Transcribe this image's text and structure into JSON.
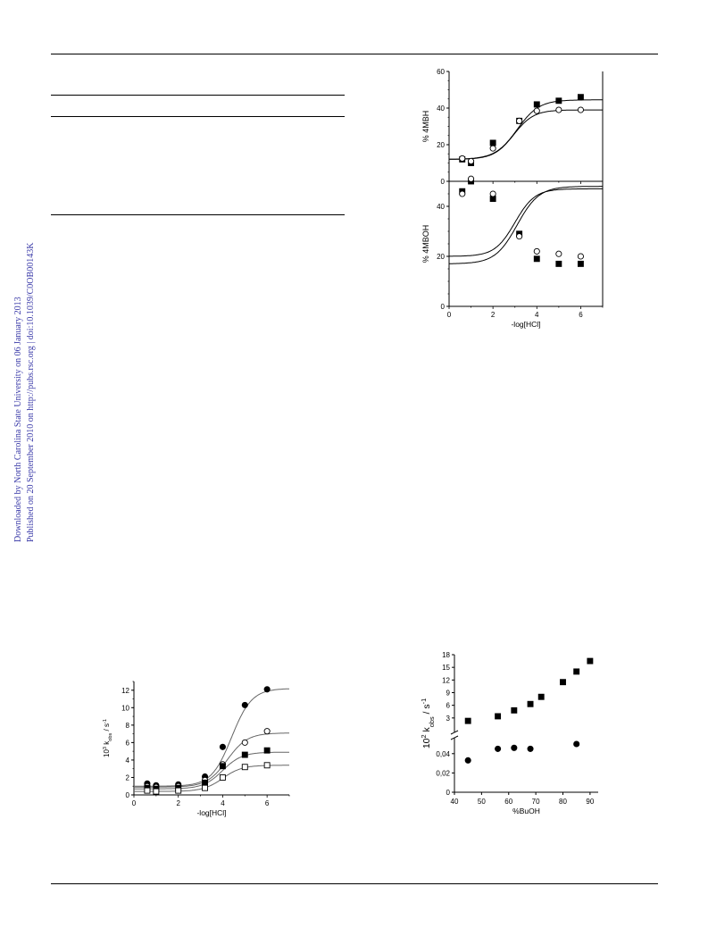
{
  "side_note": {
    "line1": "Downloaded by North Carolina State University on 06 January 2013",
    "line2": "Published on 20 September 2010 on http://pubs.rsc.org | doi:10.1039/C0OB00143K"
  },
  "chart_data": [
    {
      "id": "fig-4mbh",
      "type": "scatter",
      "xlabel": "",
      "ylabel": "% 4MBH",
      "xlim": [
        0,
        7
      ],
      "ylim": [
        0,
        60
      ],
      "yticks": [
        0,
        20,
        40,
        60
      ],
      "series": [
        {
          "marker": "square-filled",
          "x": [
            0.6,
            1.0,
            2.0,
            3.2,
            4.0,
            5.0,
            6.0
          ],
          "y": [
            12,
            10,
            21,
            33,
            42,
            44,
            46
          ]
        },
        {
          "marker": "circle-open",
          "x": [
            0.6,
            1.0,
            2.0,
            3.2,
            4.0,
            5.0,
            6.0
          ],
          "y": [
            12.5,
            11,
            18,
            33,
            38.5,
            39,
            39
          ]
        }
      ],
      "fits": [
        {
          "low": 12,
          "high": 44.5,
          "mid": 3.1,
          "k": 2.0
        },
        {
          "low": 12,
          "high": 39,
          "mid": 2.95,
          "k": 2.2
        }
      ]
    },
    {
      "id": "fig-4mboh",
      "type": "scatter",
      "xlabel": "-log[HCl]",
      "ylabel": "% 4MBOH",
      "xlim": [
        0,
        7
      ],
      "ylim": [
        0,
        50
      ],
      "yticks": [
        0,
        20,
        40
      ],
      "xticks": [
        0,
        2,
        4,
        6
      ],
      "series": [
        {
          "marker": "square-filled",
          "x": [
            0.6,
            1.0,
            2.0,
            3.2,
            4.0,
            5.0,
            6.0
          ],
          "y": [
            46,
            50,
            43,
            29,
            19,
            17,
            17
          ]
        },
        {
          "marker": "circle-open",
          "x": [
            0.6,
            1.0,
            2.0,
            3.2,
            4.0,
            5.0,
            6.0
          ],
          "y": [
            45,
            51,
            45,
            28,
            22,
            21,
            20
          ]
        }
      ],
      "fits": [
        {
          "low": 17,
          "high": 48,
          "mid": 3.1,
          "k": 2.0
        },
        {
          "low": 20,
          "high": 47,
          "mid": 3.0,
          "k": 2.2
        }
      ]
    },
    {
      "id": "fig-kobs-hcl",
      "type": "scatter",
      "xlabel": "-log[HCl]",
      "ylabel_prefix": "10",
      "ylabel_sup": "3",
      "ylabel_main": " k",
      "ylabel_sub": "obs",
      "ylabel_unit": " / s",
      "ylabel_unit_sup": "-1",
      "xlim": [
        0,
        7
      ],
      "ylim": [
        0,
        13
      ],
      "yticks": [
        0,
        2,
        4,
        6,
        8,
        10,
        12
      ],
      "xticks": [
        0,
        2,
        4,
        6
      ],
      "series": [
        {
          "marker": "circle-filled",
          "x": [
            0.6,
            1.0,
            2.0,
            3.2,
            4.0,
            5.0,
            6.0
          ],
          "y": [
            1.3,
            1.1,
            1.2,
            2.1,
            5.5,
            10.3,
            12.1
          ]
        },
        {
          "marker": "circle-open",
          "x": [
            0.6,
            1.0,
            2.0,
            3.2,
            4.0,
            5.0,
            6.0
          ],
          "y": [
            1.0,
            0.9,
            1.0,
            1.7,
            3.5,
            6.0,
            7.3
          ]
        },
        {
          "marker": "square-filled",
          "x": [
            0.6,
            1.0,
            2.0,
            3.2,
            4.0,
            5.0,
            6.0
          ],
          "y": [
            0.8,
            0.7,
            0.8,
            1.4,
            3.3,
            4.6,
            5.1
          ]
        },
        {
          "marker": "square-open",
          "x": [
            0.6,
            1.0,
            2.0,
            3.2,
            4.0,
            5.0,
            6.0
          ],
          "y": [
            0.5,
            0.4,
            0.5,
            0.8,
            2.0,
            3.2,
            3.4
          ]
        }
      ],
      "fits": [
        {
          "low": 1.0,
          "high": 12.2,
          "mid": 4.4,
          "k": 2.2
        },
        {
          "low": 0.9,
          "high": 7.1,
          "mid": 4.2,
          "k": 2.2
        },
        {
          "low": 0.7,
          "high": 4.9,
          "mid": 4.0,
          "k": 2.3
        },
        {
          "low": 0.4,
          "high": 3.4,
          "mid": 4.0,
          "k": 2.3
        }
      ]
    },
    {
      "id": "fig-kobs-buoh",
      "type": "scatter",
      "xlabel": "%BuOH",
      "ylabel_prefix": "10",
      "ylabel_sup": "2",
      "ylabel_main": " k",
      "ylabel_sub": "obs",
      "ylabel_unit": " / s",
      "ylabel_unit_sup": "-1",
      "xlim": [
        40,
        93
      ],
      "xticks": [
        40,
        50,
        60,
        70,
        80,
        90
      ],
      "axis_break": true,
      "upper_yticks": [
        "3",
        "6",
        "9",
        "12",
        "15",
        "18"
      ],
      "upper_ylim": [
        0,
        18
      ],
      "lower_yticks": [
        "0",
        "0,02",
        "0,04"
      ],
      "lower_ylim": [
        0,
        0.05
      ],
      "series": [
        {
          "marker": "square-filled",
          "panel": "upper",
          "x": [
            45,
            56,
            62,
            68,
            72,
            80,
            85,
            90
          ],
          "y": [
            2.3,
            3.4,
            4.8,
            6.3,
            8.0,
            11.5,
            14.0,
            16.5
          ]
        },
        {
          "marker": "circle-filled",
          "panel": "lower",
          "x": [
            45,
            56,
            62,
            68,
            85
          ],
          "y": [
            0.033,
            0.045,
            0.046,
            0.045,
            0.05
          ]
        }
      ]
    }
  ]
}
